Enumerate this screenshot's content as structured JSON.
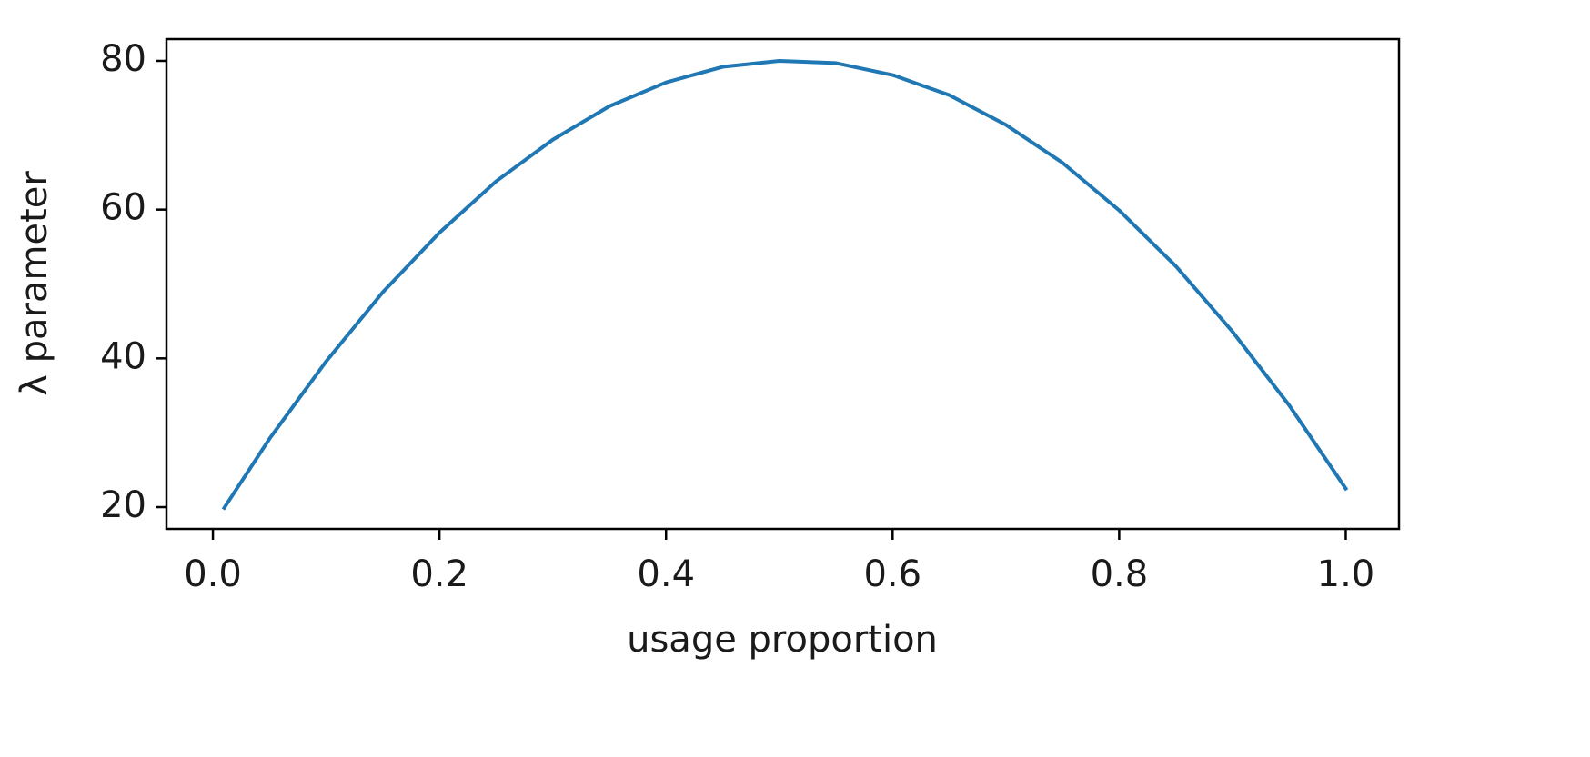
{
  "chart_data": {
    "type": "line",
    "x_label": "usage proportion",
    "y_label": "λ parameter",
    "x": [
      0.01,
      0.05,
      0.1,
      0.15,
      0.2,
      0.25,
      0.3,
      0.35,
      0.4,
      0.45,
      0.5,
      0.55,
      0.6,
      0.65,
      0.7,
      0.75,
      0.8,
      0.85,
      0.9,
      0.95,
      1.0
    ],
    "values": [
      19.9,
      29.2,
      39.6,
      48.9,
      56.9,
      63.8,
      69.4,
      73.9,
      77.1,
      79.2,
      80.0,
      79.7,
      78.1,
      75.4,
      71.4,
      66.3,
      59.9,
      52.4,
      43.6,
      33.7,
      22.5
    ],
    "color": "#1f77b4",
    "xlim": [
      -0.041,
      1.047
    ],
    "ylim": [
      17.07,
      82.93
    ],
    "xticks": [
      {
        "value": 0,
        "label": "0.0"
      },
      0.2,
      0.4,
      0.6,
      0.8,
      {
        "value": 1,
        "label": "1.0"
      }
    ],
    "yticks": [
      20,
      40,
      60,
      80
    ],
    "grid": false
  }
}
